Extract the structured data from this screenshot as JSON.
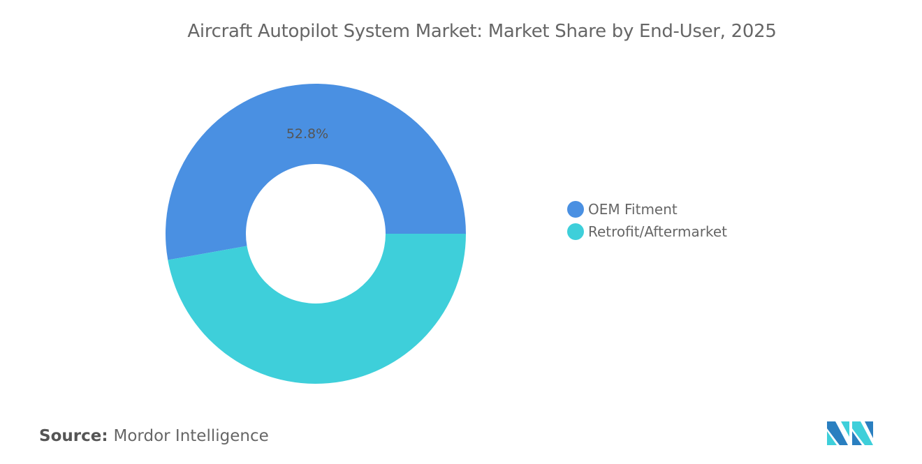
{
  "chart_data": {
    "type": "pie",
    "subtype": "donut",
    "title": "Aircraft Autopilot System Market: Market Share by End-User, 2025",
    "categories": [
      "OEM Fitment",
      "Retrofit/Aftermarket"
    ],
    "values": [
      52.8,
      47.2
    ],
    "data_labels": [
      "52.8%",
      ""
    ],
    "colors": [
      "#4A90E2",
      "#3ECFDA"
    ],
    "legend_position": "right"
  },
  "source": {
    "label": "Source:",
    "value": "Mordor Intelligence"
  },
  "logo": {
    "colors": [
      "#2A7FC0",
      "#3ECFDA"
    ]
  }
}
